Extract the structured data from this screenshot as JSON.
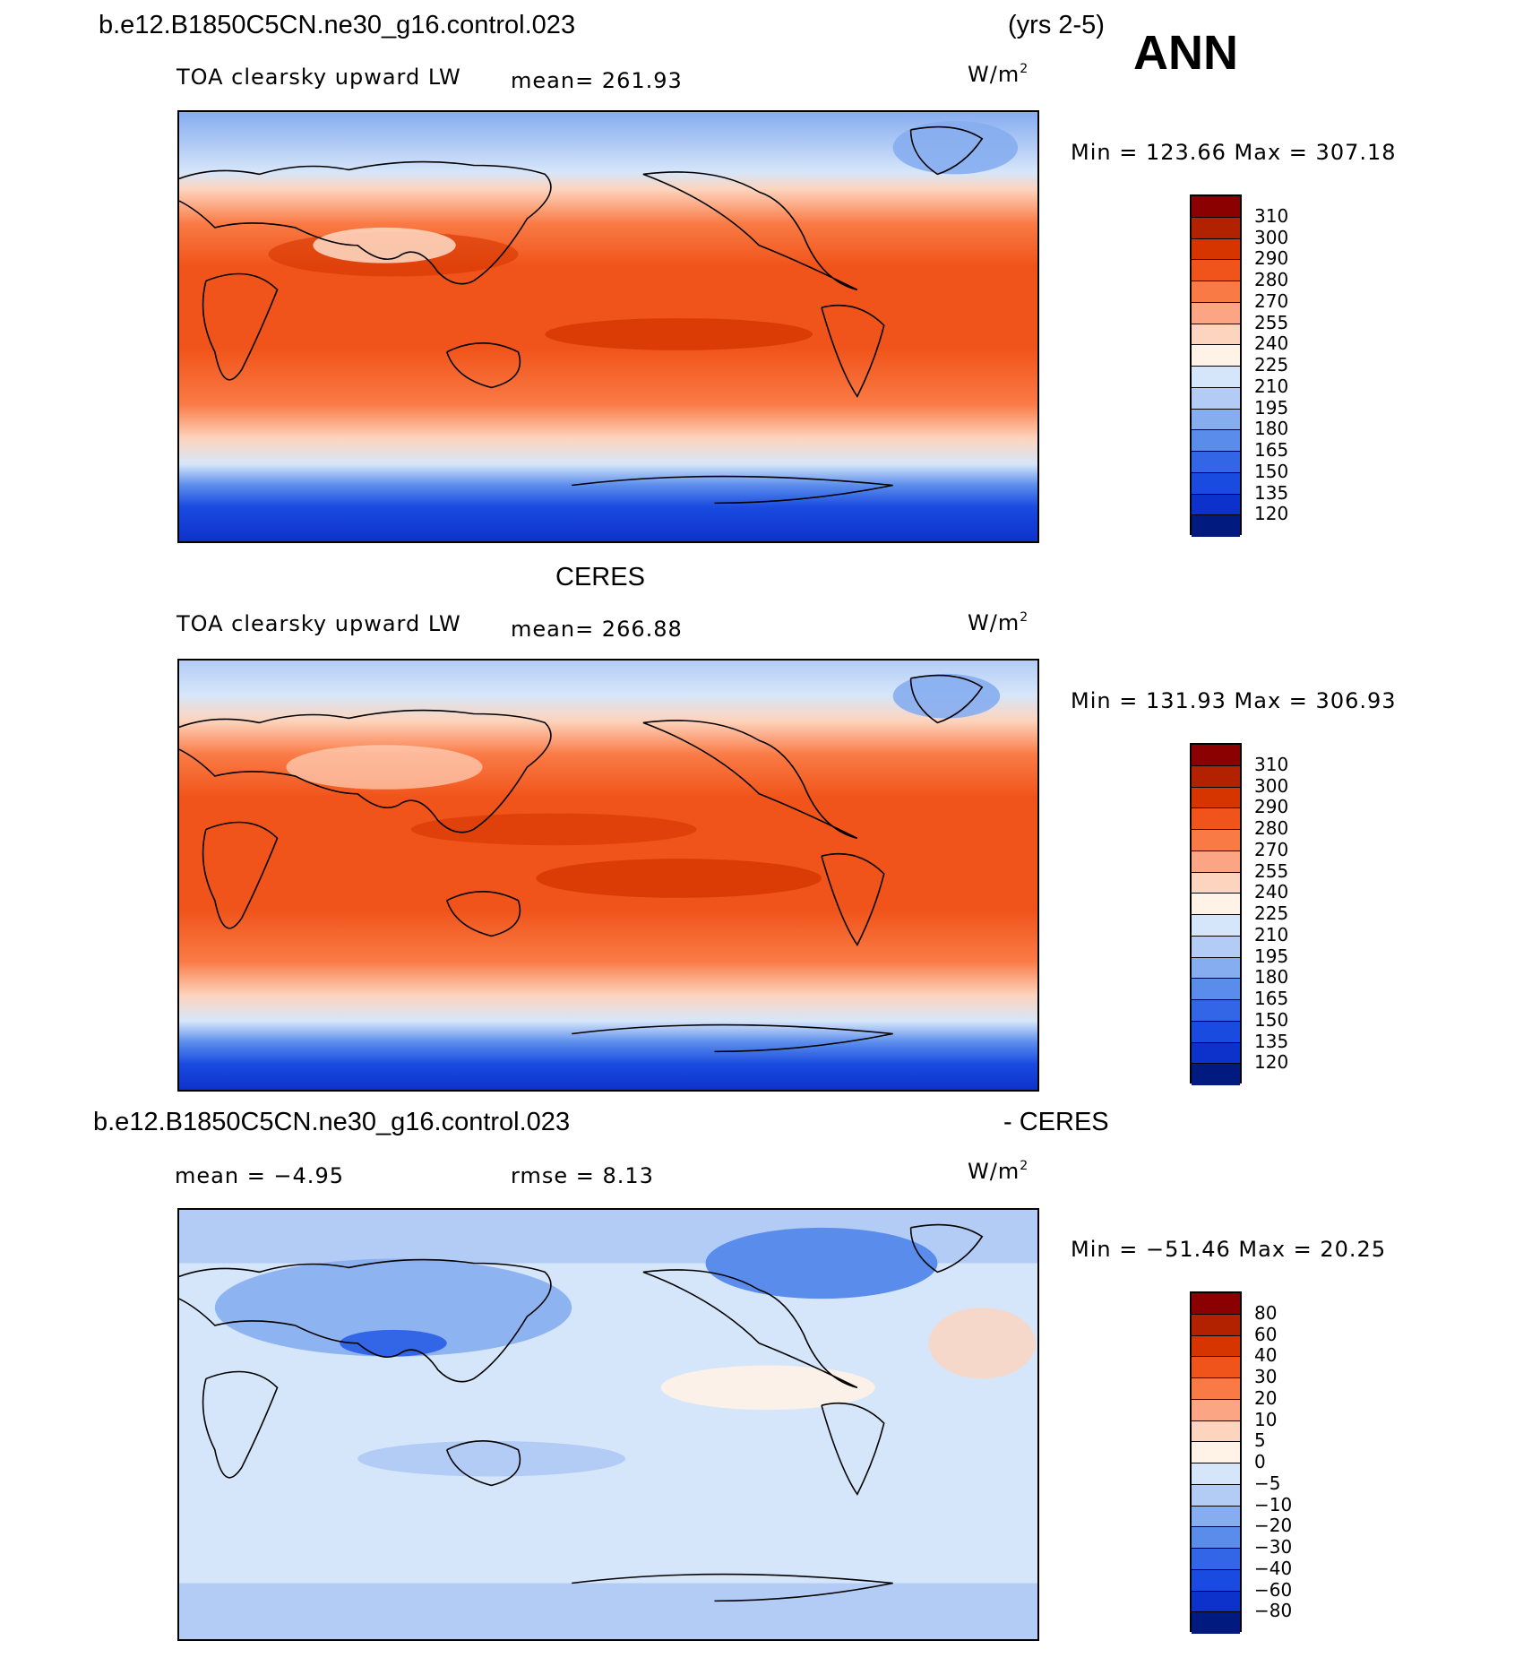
{
  "header": {
    "case_name": "b.e12.B1850C5CN.ne30_g16.control.023",
    "years": "(yrs 2-5)",
    "season": "ANN"
  },
  "panels": [
    {
      "title": "",
      "variable": "TOA clearsky upward LW",
      "mean_text": "mean= 261.93",
      "units": "W/m",
      "units_sup": "2",
      "minmax": "Min = 123.66 Max = 307.18",
      "levels": [
        "310",
        "300",
        "290",
        "280",
        "270",
        "255",
        "240",
        "225",
        "210",
        "195",
        "180",
        "165",
        "150",
        "135",
        "120"
      ],
      "colors": [
        "#8b0000",
        "#b22200",
        "#d63500",
        "#f0541a",
        "#fa7a45",
        "#fca585",
        "#fdd4bd",
        "#fff2e6",
        "#d6e6fa",
        "#b3ccf5",
        "#86adf0",
        "#5a8cec",
        "#3266e6",
        "#1a4be0",
        "#0d32cc",
        "#001a80"
      ]
    },
    {
      "title": "CERES",
      "variable": "TOA clearsky upward LW",
      "mean_text": "mean= 266.88",
      "units": "W/m",
      "units_sup": "2",
      "minmax": "Min = 131.93 Max = 306.93",
      "levels": [
        "310",
        "300",
        "290",
        "280",
        "270",
        "255",
        "240",
        "225",
        "210",
        "195",
        "180",
        "165",
        "150",
        "135",
        "120"
      ],
      "colors": [
        "#8b0000",
        "#b22200",
        "#d63500",
        "#f0541a",
        "#fa7a45",
        "#fca585",
        "#fdd4bd",
        "#fff2e6",
        "#d6e6fa",
        "#b3ccf5",
        "#86adf0",
        "#5a8cec",
        "#3266e6",
        "#1a4be0",
        "#0d32cc",
        "#001a80"
      ]
    },
    {
      "title_left": "b.e12.B1850C5CN.ne30_g16.control.023",
      "title_right": "- CERES",
      "mean_text": "mean =   −4.95",
      "rmse_text": "rmse =    8.13",
      "units": "W/m",
      "units_sup": "2",
      "minmax": "Min = −51.46 Max =   20.25",
      "levels": [
        "80",
        "60",
        "40",
        "30",
        "20",
        "10",
        "5",
        "0",
        "−5",
        "−10",
        "−20",
        "−30",
        "−40",
        "−60",
        "−80"
      ],
      "colors": [
        "#8b0000",
        "#b22200",
        "#d63500",
        "#f0541a",
        "#fa7a45",
        "#fca585",
        "#fdd4bd",
        "#fff2e6",
        "#d6e6fa",
        "#b3ccf5",
        "#86adf0",
        "#5a8cec",
        "#3266e6",
        "#1a4be0",
        "#0d32cc",
        "#001a80"
      ]
    }
  ]
}
